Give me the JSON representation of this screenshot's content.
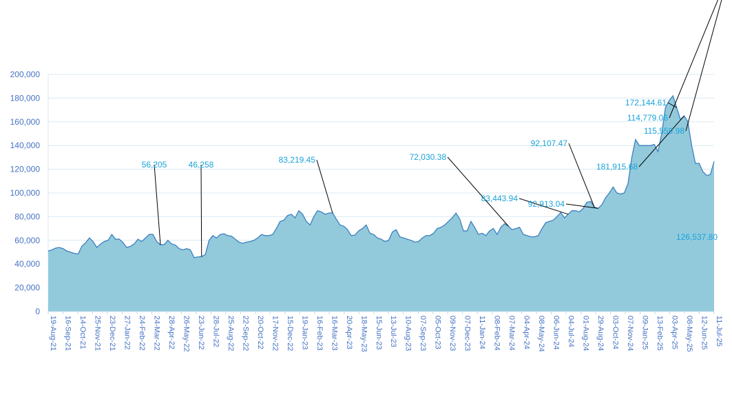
{
  "chart_data": {
    "type": "area",
    "title": "",
    "xlabel": "",
    "ylabel": "",
    "ylim": [
      0,
      200000
    ],
    "grid": true,
    "colors": {
      "fill": "#92cadc",
      "line": "#3d7fbf",
      "grid": "#d9e9f3",
      "tick_text": "#4472c4",
      "annotation_text": "#1aa3d9"
    },
    "y_ticks": [
      "0",
      "20,000",
      "40,000",
      "60,000",
      "80,000",
      "100,000",
      "120,000",
      "140,000",
      "160,000",
      "180,000",
      "200,000"
    ],
    "x_ticks": [
      "19-Aug-21",
      "16-Sep-21",
      "14-Oct-21",
      "25-Nov-21",
      "23-Dec-21",
      "27-Jan-22",
      "24-Feb-22",
      "24-Mar-22",
      "28-Apr-22",
      "26-May-22",
      "23-Jun-22",
      "28-Jul-22",
      "25-Aug-22",
      "22-Sep-22",
      "20-Oct-22",
      "17-Nov-22",
      "15-Dec-22",
      "19-Jan-23",
      "16-Feb-23",
      "16-Mar-23",
      "20-Apr-23",
      "18-May-23",
      "15-Jun-23",
      "13-Jul-23",
      "10-Aug-23",
      "07-Sep-23",
      "05-Oct-23",
      "09-Nov-23",
      "07-Dec-23",
      "11-Jan-24",
      "08-Feb-24",
      "07-Mar-24",
      "04-Apr-24",
      "08-May-24",
      "06-Jun-24",
      "04-Jul-24",
      "01-Aug-24",
      "29-Aug-24",
      "03-Oct-24",
      "07-Nov-24",
      "09-Jan-25",
      "13-Feb-25",
      "03-Apr-25",
      "08-May-25",
      "12-Jun-25",
      "11-Jul-25"
    ],
    "values": [
      51000,
      52000,
      53500,
      54000,
      53000,
      51000,
      50000,
      49000,
      48500,
      55000,
      58000,
      62000,
      59000,
      54000,
      57000,
      59000,
      60000,
      65000,
      61000,
      61000,
      58000,
      54000,
      55000,
      57000,
      61000,
      59000,
      62000,
      65000,
      65000,
      59000,
      56205,
      56500,
      60000,
      57000,
      56000,
      53000,
      52000,
      53000,
      52000,
      45500,
      46000,
      46258,
      48000,
      60000,
      64000,
      62000,
      65000,
      65500,
      64000,
      63500,
      61000,
      58500,
      57500,
      58500,
      59000,
      60000,
      62000,
      65000,
      64000,
      64000,
      65000,
      70000,
      76000,
      77000,
      81000,
      82000,
      79000,
      85000,
      82000,
      76000,
      73000,
      80000,
      85000,
      84000,
      82000,
      83000,
      83219.45,
      78000,
      73000,
      72000,
      69000,
      64000,
      64500,
      68000,
      70000,
      73000,
      66000,
      65000,
      62000,
      61000,
      59000,
      60000,
      67000,
      69000,
      63000,
      62000,
      61000,
      60000,
      58500,
      59000,
      62000,
      64000,
      64000,
      66000,
      70000,
      71000,
      73000,
      76000,
      79000,
      83000,
      78000,
      68000,
      68000,
      76000,
      71000,
      65000,
      66000,
      64000,
      68000,
      70000,
      65000,
      71000,
      74000,
      72030.38,
      69000,
      70000,
      71000,
      65000,
      64000,
      63000,
      63000,
      64000,
      70000,
      75000,
      76000,
      77000,
      80000,
      83443.94,
      79000,
      82000,
      85000,
      85000,
      84000,
      87000,
      92107.47,
      92913.04,
      88000,
      87000,
      90000,
      96000,
      100000,
      105000,
      100000,
      99000,
      100000,
      108000,
      130000,
      145000,
      140000,
      140000,
      140000,
      140000,
      141000,
      135000,
      150000,
      172144.61,
      178000,
      181915.68,
      172000,
      162000,
      165000,
      160000,
      140000,
      125000,
      125000,
      118000,
      114779.06,
      115559.98,
      126537.8
    ],
    "annotations": [
      {
        "label": "56,205",
        "index": 30
      },
      {
        "label": "46,258",
        "index": 41
      },
      {
        "label": "83,219.45",
        "index": 76
      },
      {
        "label": "72,030.38",
        "index": 123
      },
      {
        "label": "83,443.94",
        "index": 139
      },
      {
        "label": "92,913.04",
        "index": 147
      },
      {
        "label": "92,107.47",
        "index": 146
      },
      {
        "label": "181,915.68",
        "index": 170
      },
      {
        "label": "172,144.61",
        "index": 168
      },
      {
        "label": "114,779.06",
        "index": 179
      },
      {
        "label": "115,559.98",
        "index": 180
      },
      {
        "label": "126,537.80",
        "index": 181
      }
    ]
  }
}
